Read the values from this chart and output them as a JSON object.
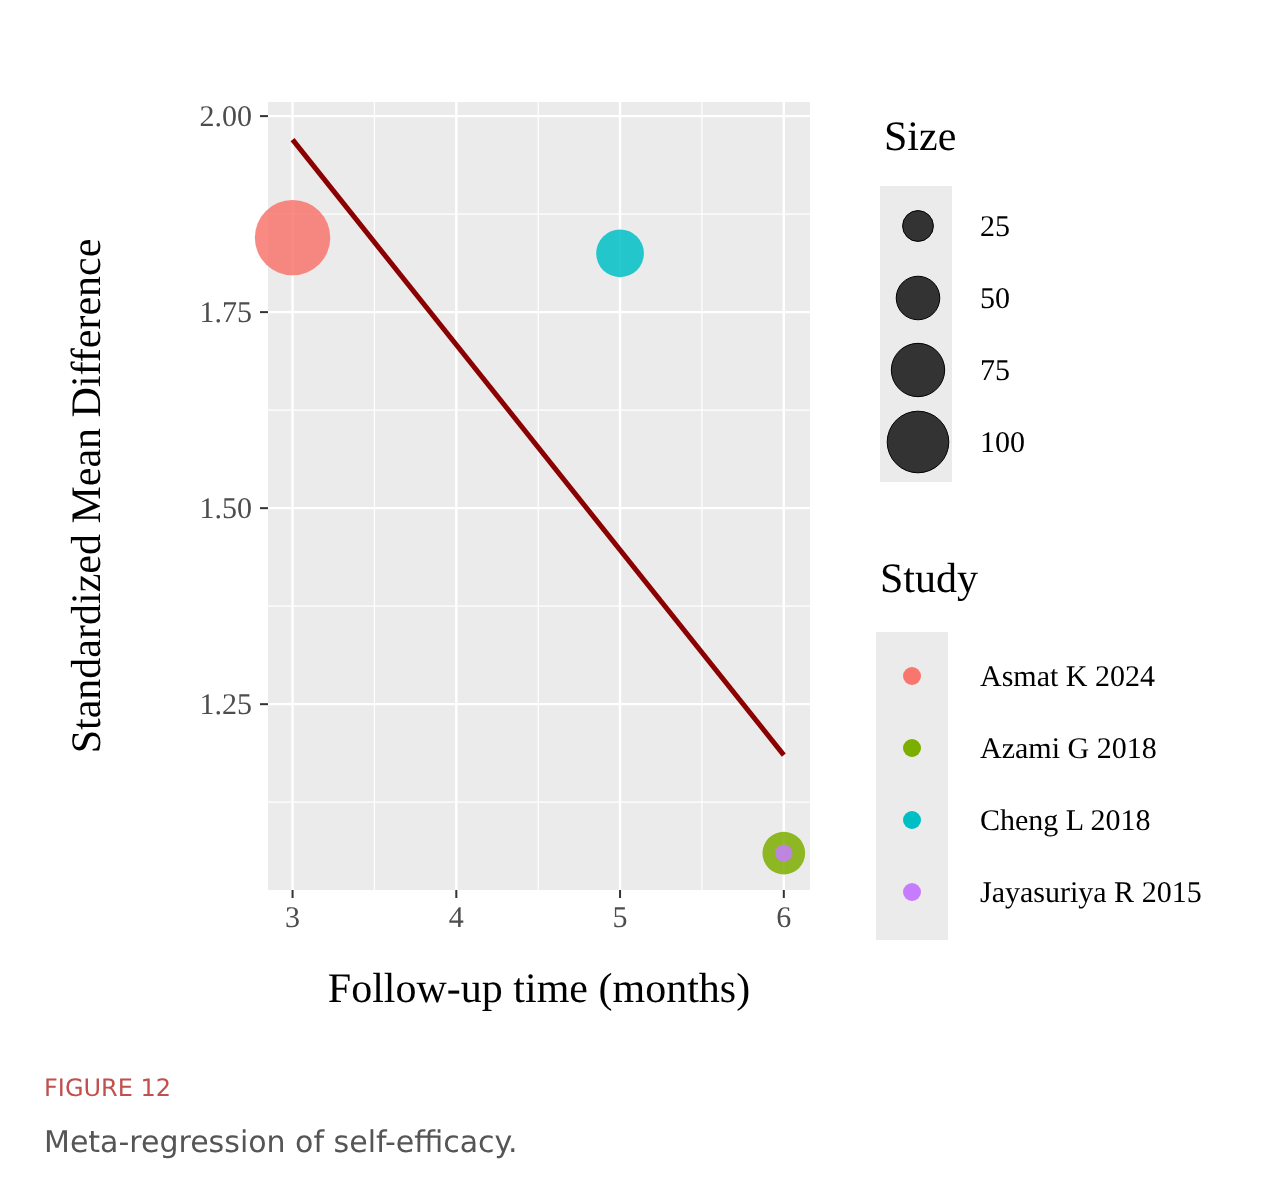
{
  "chart_data": {
    "type": "bubble",
    "xlabel": "Follow-up time (months)",
    "ylabel": "Standardized Mean Difference",
    "legend_title": "Study",
    "xlim": [
      2.85,
      6.16
    ],
    "xticks": [
      3,
      4,
      5,
      6
    ],
    "ylim": [
      1.013,
      2.018
    ],
    "yticks": [
      {
        "value": 1.25,
        "label": "1.25"
      },
      {
        "value": 1.5,
        "label": "1.50"
      },
      {
        "value": 1.75,
        "label": "1.75"
      },
      {
        "value": 2,
        "label": "2.00"
      }
    ],
    "grid": true,
    "legend": "right",
    "size_legend": [
      25,
      50,
      75,
      100
    ],
    "series": [
      {
        "name": "Asmat K 2024",
        "color": "#f8766d",
        "x": [
          3
        ],
        "values": [
          1.845
        ],
        "sizes": [
          150
        ]
      },
      {
        "name": "Azami G 2018",
        "color": "#7cae00",
        "x": [
          6
        ],
        "values": [
          1.06
        ],
        "sizes": [
          48
        ]
      },
      {
        "name": "Cheng L 2018",
        "color": "#00bfc4",
        "x": [
          5
        ],
        "values": [
          1.825
        ],
        "sizes": [
          60
        ]
      },
      {
        "name": "Jayasuriya R 2015",
        "color": "#c77cff",
        "x": [
          6
        ],
        "values": [
          1.06
        ],
        "sizes": [
          8
        ]
      },
      {
        "type": "line",
        "color": "#8b0000",
        "x": [
          3,
          6
        ],
        "values": [
          1.97,
          1.185
        ]
      }
    ],
    "annotations": [
      "Size",
      "FIGURE 12",
      "Meta-regression of self-efficacy."
    ]
  }
}
